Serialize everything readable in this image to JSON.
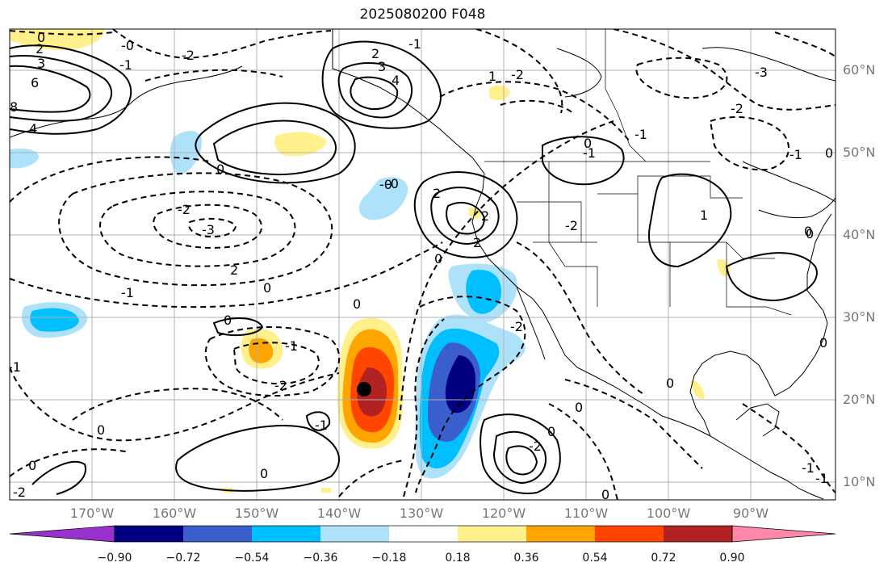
{
  "title": "2025080200 F048",
  "lat_labels": [
    "60°N",
    "50°N",
    "40°N",
    "30°N",
    "20°N",
    "10°N"
  ],
  "lon_labels": [
    "170°W",
    "160°W",
    "150°W",
    "140°W",
    "130°W",
    "120°W",
    "110°W",
    "100°W",
    "90°W"
  ],
  "colorbar": {
    "ticks": [
      "−0.90",
      "−0.72",
      "−0.54",
      "−0.36",
      "−0.18",
      "0.18",
      "0.36",
      "0.54",
      "0.72",
      "0.90"
    ],
    "colors": [
      "#9932cc",
      "#000080",
      "#3a5fcd",
      "#00bfff",
      "#aee2fa",
      "#ffffff",
      "#fff08c",
      "#ffa500",
      "#ff4500",
      "#b22222",
      "#ff88aa"
    ]
  },
  "contour_labels": [
    "0",
    "2",
    "3",
    "6",
    "8",
    "4",
    "-2",
    "-0",
    "0",
    "-1",
    "2",
    "-1",
    "-3",
    "3",
    "4",
    "0",
    "0",
    "-1",
    "-2",
    "2",
    "2",
    "-2",
    "-0",
    "2",
    "0",
    "-3",
    "-2",
    "-1",
    "-1",
    "1",
    "0",
    "0",
    "-2",
    "-1",
    "0",
    "1",
    "-1",
    "0",
    "0",
    "-2",
    "-1",
    "-2",
    "0",
    "0",
    "-2",
    "-1",
    "0",
    "-2",
    "2",
    "-1",
    "0",
    "-0",
    "0",
    "-1",
    "0",
    "0",
    "0"
  ]
}
